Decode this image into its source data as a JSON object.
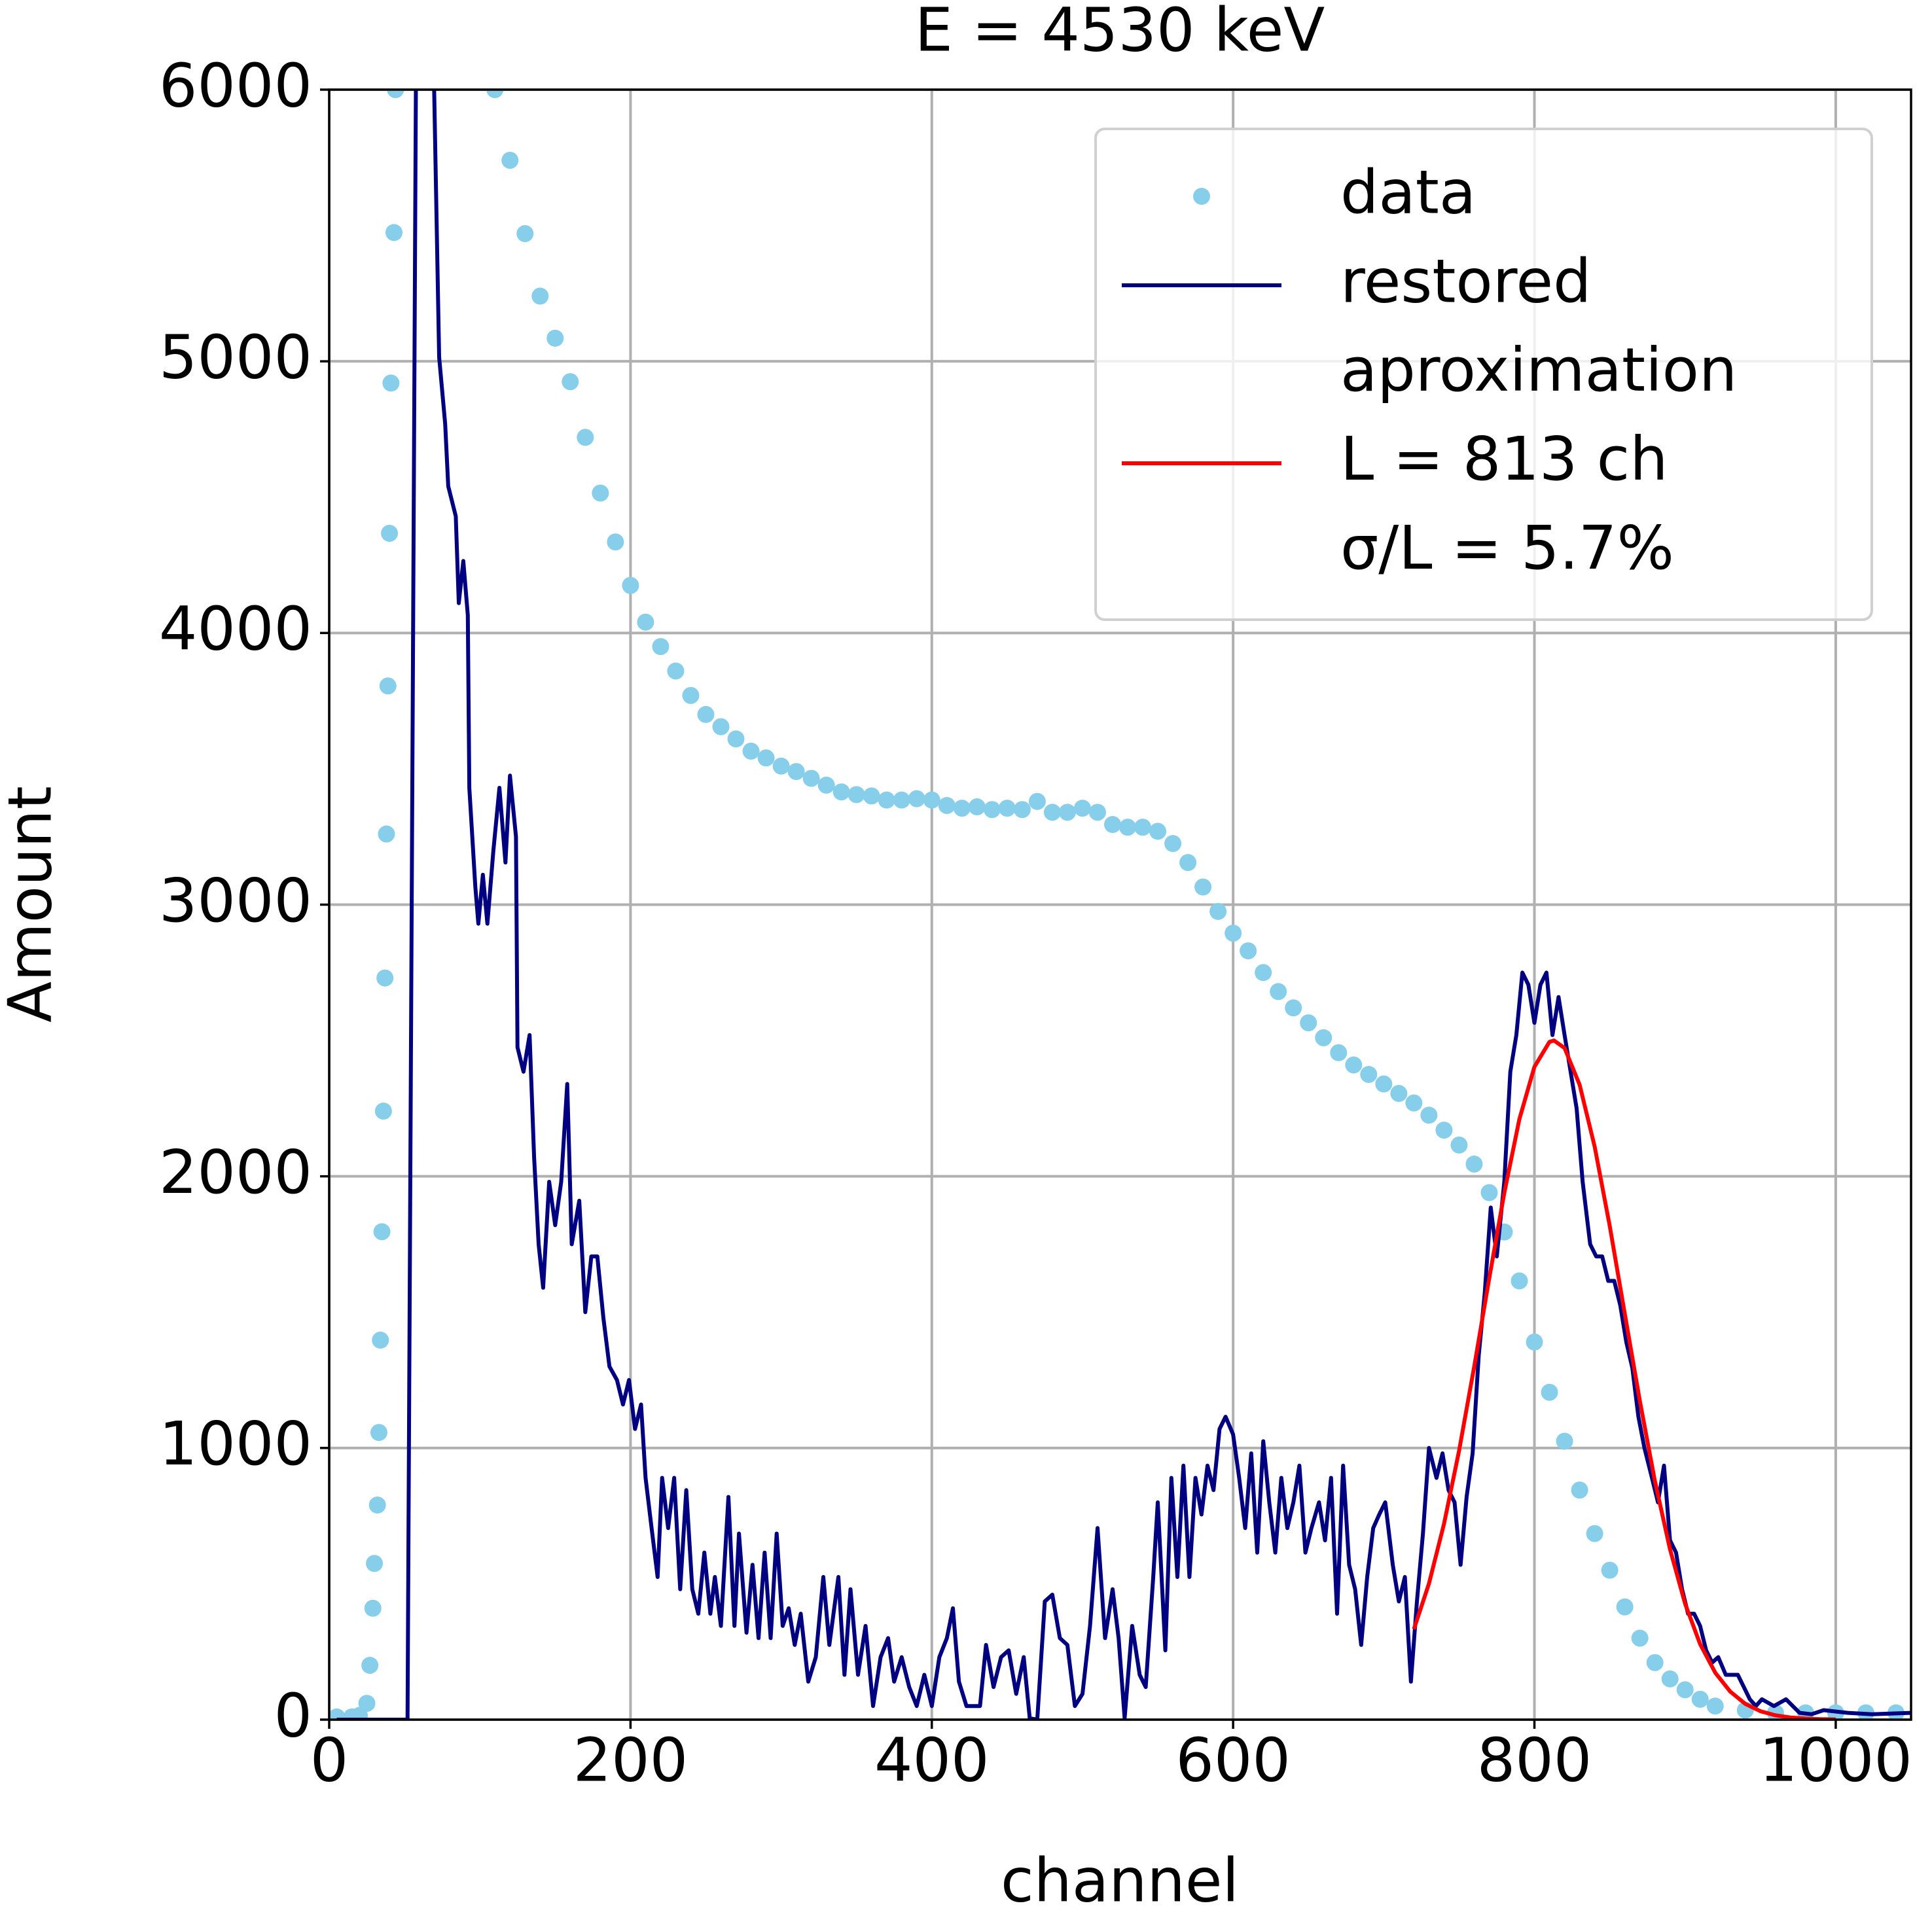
{
  "chart_data": {
    "type": "line",
    "title": "E = 4530 keV",
    "x_label": "channel",
    "y_label": "Amount",
    "xlim": [
      0,
      1050
    ],
    "ylim": [
      0,
      6000
    ],
    "xticks": [
      0,
      200,
      400,
      600,
      800,
      1000
    ],
    "yticks": [
      0,
      1000,
      2000,
      3000,
      4000,
      5000,
      6000
    ],
    "grid": true,
    "legend": "upper right",
    "series": [
      {
        "name": "data",
        "type": "scatter",
        "color": "#87ceeb",
        "x": [
          5,
          15,
          20,
          25,
          27,
          29,
          30,
          32,
          33,
          34,
          35,
          36,
          37,
          38,
          39,
          40,
          41,
          43,
          44,
          110,
          120,
          130,
          140,
          150,
          160,
          170,
          180,
          190,
          200,
          210,
          220,
          230,
          240,
          250,
          260,
          270,
          280,
          290,
          300,
          310,
          320,
          330,
          340,
          350,
          360,
          370,
          380,
          390,
          400,
          410,
          420,
          430,
          440,
          450,
          460,
          470,
          480,
          490,
          500,
          510,
          520,
          530,
          540,
          550,
          560,
          570,
          580,
          590,
          600,
          610,
          620,
          630,
          640,
          650,
          660,
          670,
          680,
          690,
          700,
          710,
          720,
          730,
          740,
          750,
          760,
          770,
          780,
          790,
          800,
          810,
          820,
          830,
          840,
          850,
          860,
          870,
          880,
          890,
          900,
          910,
          920,
          940,
          960,
          980,
          1000,
          1020,
          1040
        ],
        "values": [
          10,
          10,
          15,
          60,
          200,
          410,
          575,
          790,
          1057,
          1397,
          1796,
          2240,
          2730,
          3260,
          3805,
          4367,
          4920,
          5474,
          6000,
          6000,
          5740,
          5470,
          5240,
          5085,
          4925,
          4720,
          4515,
          4335,
          4175,
          4040,
          3950,
          3860,
          3770,
          3700,
          3655,
          3610,
          3565,
          3540,
          3510,
          3490,
          3465,
          3440,
          3415,
          3405,
          3400,
          3385,
          3385,
          3390,
          3385,
          3365,
          3355,
          3360,
          3350,
          3355,
          3350,
          3380,
          3340,
          3340,
          3355,
          3340,
          3295,
          3285,
          3285,
          3270,
          3225,
          3155,
          3065,
          2975,
          2895,
          2830,
          2750,
          2680,
          2620,
          2565,
          2510,
          2455,
          2410,
          2375,
          2340,
          2305,
          2270,
          2225,
          2170,
          2115,
          2045,
          1940,
          1795,
          1615,
          1390,
          1205,
          1025,
          845,
          685,
          550,
          415,
          300,
          210,
          150,
          110,
          75,
          50,
          35,
          25,
          25,
          25,
          25,
          25
        ]
      },
      {
        "name": "restored",
        "type": "line",
        "color": "#000080",
        "x": [
          5,
          50,
          52,
          58,
          68,
          73,
          77,
          79,
          84,
          86,
          89,
          92,
          93,
          97,
          99,
          102,
          105,
          109,
          113,
          117,
          120,
          124,
          125,
          129,
          133,
          136,
          139,
          142,
          146,
          150,
          154,
          158,
          161,
          166,
          170,
          174,
          178,
          182,
          186,
          191,
          195,
          199,
          203,
          207,
          210,
          214,
          218,
          221,
          225,
          229,
          233,
          237,
          241,
          245,
          249,
          253,
          256,
          260,
          265,
          269,
          272,
          277,
          281,
          285,
          289,
          293,
          297,
          301,
          305,
          309,
          313,
          318,
          323,
          328,
          332,
          338,
          342,
          346,
          351,
          356,
          361,
          366,
          371,
          375,
          380,
          385,
          390,
          395,
          400,
          405,
          410,
          414,
          418,
          423,
          428,
          432,
          436,
          441,
          446,
          451,
          456,
          461,
          465,
          470,
          475,
          480,
          485,
          490,
          495,
          500,
          505,
          510,
          515,
          520,
          524,
          528,
          533,
          538,
          542,
          547,
          550,
          555,
          559,
          563,
          567,
          571,
          575,
          579,
          583,
          587,
          591,
          595,
          600,
          604,
          608,
          612,
          616,
          620,
          624,
          628,
          632,
          636,
          640,
          644,
          648,
          652,
          657,
          661,
          665,
          669,
          673,
          677,
          681,
          685,
          689,
          693,
          697,
          701,
          706,
          710,
          714,
          718,
          722,
          726,
          730,
          735,
          739,
          743,
          747,
          751,
          755,
          759,
          763,
          767,
          771,
          775,
          780,
          784,
          788,
          792,
          796,
          800,
          804,
          808,
          812,
          816,
          820,
          824,
          828,
          832,
          837,
          841,
          845,
          849,
          853,
          857,
          861,
          865,
          869,
          873,
          878,
          882,
          886,
          890,
          894,
          898,
          902,
          906,
          910,
          914,
          918,
          922,
          927,
          931,
          935,
          939,
          943,
          947,
          951,
          959,
          967,
          976,
          984,
          992,
          1008,
          1024,
          1050
        ],
        "values": [
          0,
          0,
          0,
          6500,
          6500,
          5015,
          4770,
          4540,
          4430,
          4110,
          4265,
          4065,
          3430,
          3065,
          2930,
          3110,
          2930,
          3200,
          3430,
          3155,
          3475,
          3250,
          2475,
          2385,
          2520,
          2070,
          1750,
          1590,
          1980,
          1820,
          1980,
          2340,
          1750,
          1910,
          1500,
          1705,
          1705,
          1480,
          1300,
          1250,
          1160,
          1250,
          1070,
          1160,
          890,
          705,
          525,
          890,
          705,
          890,
          480,
          845,
          480,
          390,
          615,
          390,
          525,
          345,
          820,
          345,
          685,
          320,
          570,
          300,
          615,
          300,
          685,
          345,
          410,
          275,
          390,
          140,
          230,
          525,
          275,
          525,
          165,
          480,
          165,
          345,
          50,
          230,
          300,
          140,
          230,
          120,
          50,
          165,
          50,
          230,
          300,
          410,
          140,
          50,
          50,
          50,
          275,
          120,
          230,
          255,
          95,
          230,
          5,
          0,
          435,
          460,
          300,
          275,
          50,
          95,
          345,
          705,
          300,
          480,
          300,
          5,
          345,
          165,
          120,
          525,
          800,
          255,
          890,
          525,
          935,
          525,
          890,
          755,
          935,
          845,
          1070,
          1115,
          1050,
          890,
          705,
          980,
          615,
          1025,
          800,
          615,
          890,
          705,
          800,
          935,
          615,
          705,
          800,
          660,
          890,
          390,
          935,
          570,
          480,
          275,
          525,
          705,
          755,
          800,
          570,
          435,
          525,
          140,
          435,
          685,
          1000,
          890,
          980,
          845,
          800,
          570,
          820,
          980,
          1340,
          1570,
          1885,
          1705,
          1980,
          2385,
          2520,
          2750,
          2705,
          2565,
          2705,
          2750,
          2520,
          2660,
          2520,
          2385,
          2250,
          1980,
          1750,
          1705,
          1705,
          1615,
          1615,
          1525,
          1390,
          1295,
          1115,
          1000,
          890,
          800,
          935,
          660,
          615,
          480,
          390,
          390,
          345,
          255,
          210,
          230,
          165,
          165,
          165,
          120,
          75,
          50,
          75,
          50,
          75,
          25,
          20,
          35,
          25,
          20,
          25
        ]
      },
      {
        "name": "aproximation\nL = 813 ch\nσ/L = 5.7%",
        "type": "line",
        "color": "#ff0000",
        "x": [
          720,
          730,
          740,
          750,
          760,
          770,
          780,
          790,
          800,
          810,
          813,
          820,
          830,
          840,
          850,
          860,
          870,
          880,
          890,
          900,
          910,
          920,
          930,
          940,
          950,
          960,
          970,
          980,
          990,
          1000
        ],
        "values": [
          333,
          501,
          721,
          990,
          1298,
          1625,
          1939,
          2210,
          2403,
          2495,
          2500,
          2472,
          2337,
          2109,
          1817,
          1494,
          1172,
          877,
          627,
          427,
          278,
          173,
          103,
          58,
          31,
          16,
          8,
          4,
          2,
          1
        ]
      }
    ]
  }
}
